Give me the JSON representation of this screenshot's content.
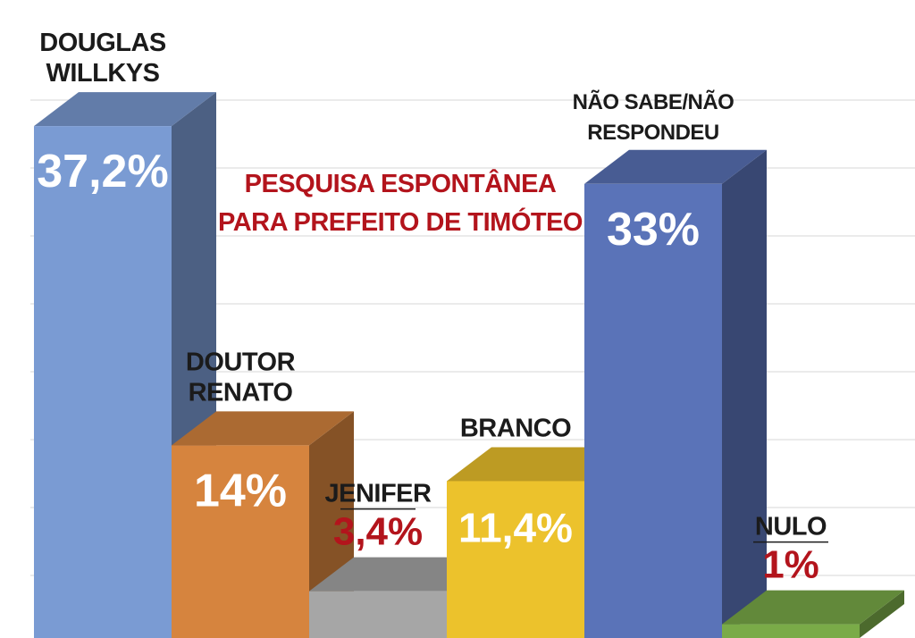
{
  "chart_data": {
    "type": "bar",
    "title": "PESQUISA ESPONTÂNEA",
    "subtitle": "PARA PREFEITO DE TIMÓTEO",
    "categories": [
      {
        "name_lines": [
          "DOUGLAS",
          "WILLKYS"
        ],
        "value": 37.2,
        "value_label": "37,2%",
        "color": "#7a9bd3"
      },
      {
        "name_lines": [
          "DOUTOR",
          "RENATO"
        ],
        "value": 14,
        "value_label": "14%",
        "color": "#d6843e"
      },
      {
        "name_lines": [
          "JENIFER"
        ],
        "value": 3.4,
        "value_label": "3,4%",
        "color": "#a6a6a6"
      },
      {
        "name_lines": [
          "BRANCO"
        ],
        "value": 11.4,
        "value_label": "11,4%",
        "color": "#ecc22c"
      },
      {
        "name_lines": [
          "NÃO SABE/NÃO",
          "RESPONDEU"
        ],
        "value": 33,
        "value_label": "33%",
        "color": "#5a73b8"
      },
      {
        "name_lines": [
          "NULO"
        ],
        "value": 1,
        "value_label": "1%",
        "color": "#7aab48"
      }
    ],
    "colors": {
      "title": "#b3141c",
      "inside_value": "#ffffff",
      "outside_value": "#b3141c",
      "name": "#1b1b1b"
    },
    "grid": true,
    "legend": "none"
  }
}
